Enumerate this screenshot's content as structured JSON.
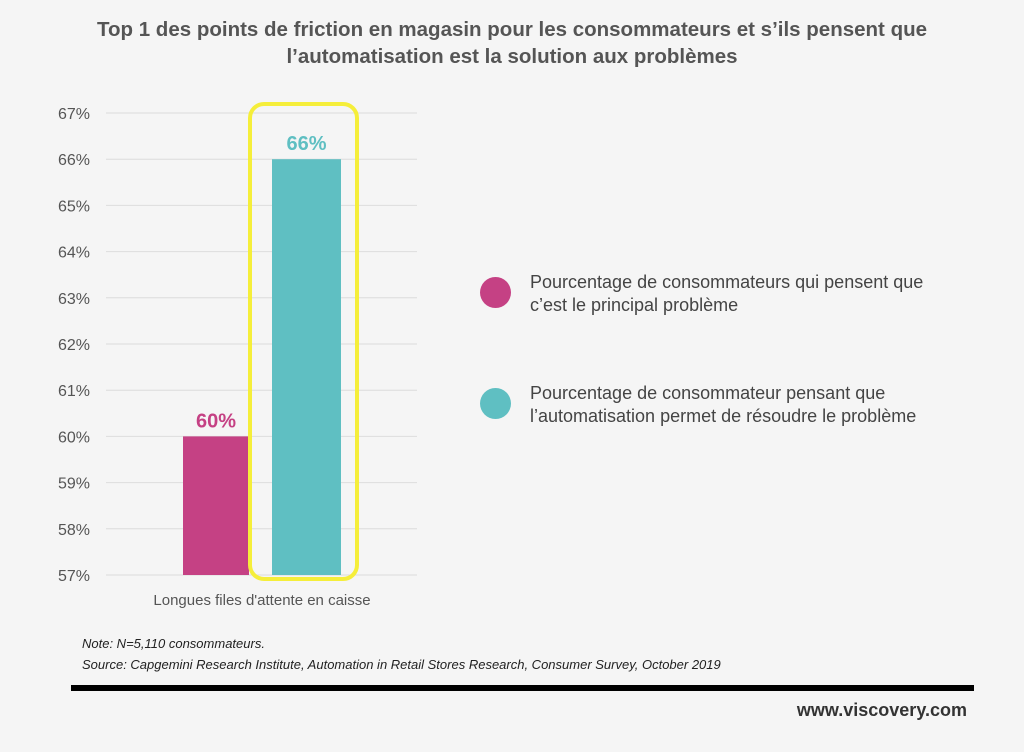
{
  "chart_data": {
    "type": "bar",
    "title": [
      "Top 1 des points de friction en magasin pour les consommateurs et s’ils pensent que",
      "l’automatisation est la solution aux problèmes"
    ],
    "categories": [
      "Longues files d'attente en caisse"
    ],
    "series": [
      {
        "name": "Pourcentage de consommateurs qui pensent que c’est le principal problème",
        "legend_lines": [
          "Pourcentage de consommateurs qui pensent que",
          "c’est le principal problème"
        ],
        "values": [
          60
        ],
        "label": "60%",
        "color": "#c54184"
      },
      {
        "name": "Pourcentage de consommateur pensant que l’automatisation permet de résoudre le problème",
        "legend_lines": [
          "Pourcentage de consommateur pensant que",
          "l’automatisation permet de résoudre le problème"
        ],
        "values": [
          66
        ],
        "label": "66%",
        "color": "#5fbfc2",
        "highlighted": true
      }
    ],
    "ylim": [
      57,
      67
    ],
    "yticks": [
      "57%",
      "58%",
      "59%",
      "60%",
      "61%",
      "62%",
      "63%",
      "64%",
      "65%",
      "66%",
      "67%"
    ],
    "grid": true,
    "legend_position": "right",
    "highlight_color": "#f5ee3a"
  },
  "footer": {
    "note": "Note: N=5,110 consommateurs.",
    "source": "Source: Capgemini Research Institute, Automation in Retail Stores Research, Consumer Survey, October 2019",
    "website": "www.viscovery.com"
  }
}
